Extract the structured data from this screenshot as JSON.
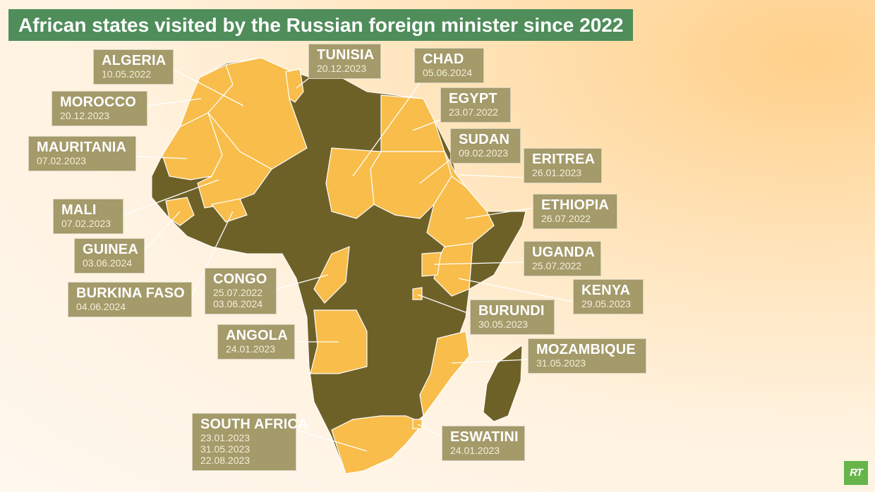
{
  "title": "African states visited by the Russian foreign minister since 2022",
  "legend_colors": {
    "visited": "#f8bd4a",
    "not_visited": "#6e6128",
    "label_box": "#a49a6a",
    "title_bar": "#4f8d5b"
  },
  "visits": [
    {
      "name": "ALGERIA",
      "dates": [
        "10.05.2022"
      ]
    },
    {
      "name": "MOROCCO",
      "dates": [
        "20.12.2023"
      ]
    },
    {
      "name": "MAURITANIA",
      "dates": [
        "07.02.2023"
      ]
    },
    {
      "name": "MALI",
      "dates": [
        "07.02.2023"
      ]
    },
    {
      "name": "GUINEA",
      "dates": [
        "03.06.2024"
      ]
    },
    {
      "name": "BURKINA FASO",
      "dates": [
        "04.06.2024"
      ]
    },
    {
      "name": "CONGO",
      "dates": [
        "25.07.2022",
        "03.06.2024"
      ]
    },
    {
      "name": "ANGOLA",
      "dates": [
        "24.01.2023"
      ]
    },
    {
      "name": "SOUTH AFRICA",
      "dates": [
        "23.01.2023",
        "31.05.2023",
        "22.08.2023"
      ]
    },
    {
      "name": "TUNISIA",
      "dates": [
        "20.12.2023"
      ]
    },
    {
      "name": "CHAD",
      "dates": [
        "05.06.2024"
      ]
    },
    {
      "name": "EGYPT",
      "dates": [
        "23.07.2022"
      ]
    },
    {
      "name": "SUDAN",
      "dates": [
        "09.02.2023"
      ]
    },
    {
      "name": "ERITREA",
      "dates": [
        "26.01.2023"
      ]
    },
    {
      "name": "ETHIOPIA",
      "dates": [
        "26.07.2022"
      ]
    },
    {
      "name": "UGANDA",
      "dates": [
        "25.07.2022"
      ]
    },
    {
      "name": "KENYA",
      "dates": [
        "29.05.2023"
      ]
    },
    {
      "name": "BURUNDI",
      "dates": [
        "30.05.2023"
      ]
    },
    {
      "name": "MOZAMBIQUE",
      "dates": [
        "31.05.2023"
      ]
    },
    {
      "name": "ESWATINI",
      "dates": [
        "24.01.2023"
      ]
    }
  ],
  "logo": "RT"
}
